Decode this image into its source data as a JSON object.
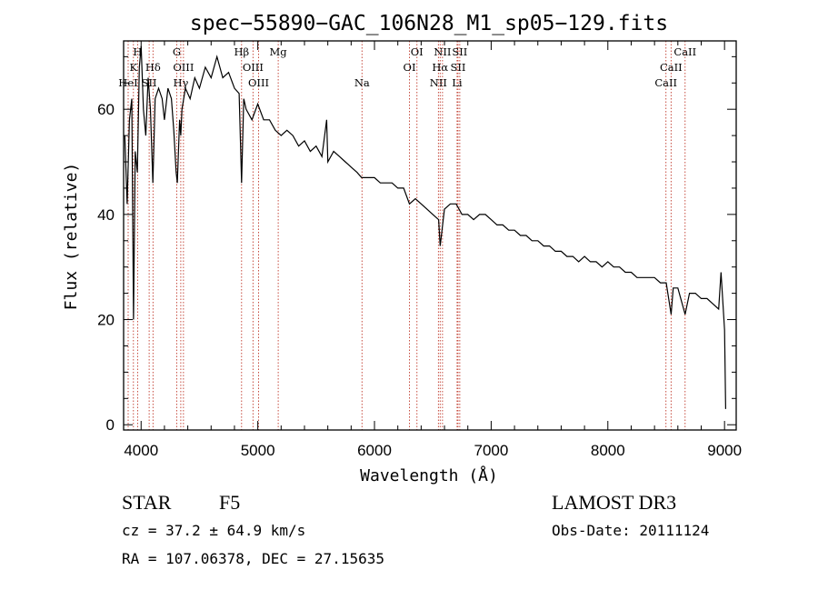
{
  "chart_data": {
    "type": "line",
    "title": "spec−55890−GAC_106N28_M1_sp05−129.fits",
    "xlabel": "Wavelength (Å)",
    "ylabel": "Flux (relative)",
    "xlim": [
      3850,
      9100
    ],
    "ylim": [
      -1,
      73
    ],
    "xticks": [
      4000,
      5000,
      6000,
      7000,
      8000,
      9000
    ],
    "yticks": [
      0,
      20,
      40,
      60
    ],
    "grid": false,
    "series": [
      {
        "name": "spectrum",
        "x": [
          3860,
          3880,
          3900,
          3920,
          3935,
          3950,
          3968,
          3985,
          4000,
          4020,
          4040,
          4060,
          4080,
          4101,
          4120,
          4150,
          4180,
          4200,
          4230,
          4260,
          4280,
          4300,
          4310,
          4330,
          4340,
          4350,
          4380,
          4420,
          4460,
          4500,
          4550,
          4600,
          4650,
          4700,
          4750,
          4800,
          4840,
          4861,
          4880,
          4900,
          4950,
          5000,
          5050,
          5100,
          5150,
          5200,
          5250,
          5300,
          5350,
          5400,
          5450,
          5500,
          5550,
          5590,
          5600,
          5650,
          5700,
          5750,
          5800,
          5850,
          5890,
          5950,
          6000,
          6050,
          6100,
          6150,
          6200,
          6250,
          6300,
          6350,
          6400,
          6450,
          6500,
          6550,
          6563,
          6600,
          6650,
          6700,
          6750,
          6800,
          6850,
          6900,
          6950,
          7000,
          7050,
          7100,
          7150,
          7200,
          7250,
          7300,
          7350,
          7400,
          7450,
          7500,
          7550,
          7600,
          7650,
          7700,
          7750,
          7800,
          7850,
          7900,
          7950,
          8000,
          8050,
          8100,
          8150,
          8200,
          8250,
          8300,
          8350,
          8400,
          8450,
          8500,
          8542,
          8560,
          8600,
          8662,
          8700,
          8750,
          8800,
          8850,
          8900,
          8950,
          8970,
          9000,
          9010
        ],
        "values": [
          55,
          42,
          58,
          62,
          20,
          52,
          48,
          68,
          72,
          60,
          55,
          66,
          60,
          46,
          62,
          64,
          62,
          58,
          64,
          62,
          56,
          48,
          46,
          58,
          55,
          60,
          64,
          62,
          66,
          64,
          68,
          66,
          70,
          66,
          67,
          64,
          63,
          46,
          62,
          60,
          58,
          61,
          58,
          58,
          56,
          55,
          56,
          55,
          53,
          54,
          52,
          53,
          51,
          58,
          50,
          52,
          51,
          50,
          49,
          48,
          47,
          47,
          47,
          46,
          46,
          46,
          45,
          45,
          42,
          43,
          42,
          41,
          40,
          39,
          34,
          41,
          42,
          42,
          40,
          40,
          39,
          40,
          40,
          39,
          38,
          38,
          37,
          37,
          36,
          36,
          35,
          35,
          34,
          34,
          33,
          33,
          32,
          32,
          31,
          32,
          31,
          31,
          30,
          31,
          30,
          30,
          29,
          29,
          28,
          28,
          28,
          28,
          27,
          27,
          21,
          26,
          26,
          21,
          25,
          25,
          24,
          24,
          23,
          22,
          29,
          18,
          3
        ]
      }
    ],
    "lines": [
      {
        "label": "H",
        "wavelength": 3970,
        "row": 1
      },
      {
        "label": "K",
        "wavelength": 3934,
        "row": 2
      },
      {
        "label": "Hδ",
        "wavelength": 4102,
        "row": 2
      },
      {
        "label": "HeI",
        "wavelength": 3889,
        "row": 3
      },
      {
        "label": "SII",
        "wavelength": 4069,
        "row": 3
      },
      {
        "label": "G",
        "wavelength": 4305,
        "row": 1
      },
      {
        "label": "OIII",
        "wavelength": 4363,
        "row": 2
      },
      {
        "label": "Hγ",
        "wavelength": 4340,
        "row": 3
      },
      {
        "label": "Hβ",
        "wavelength": 4861,
        "row": 1
      },
      {
        "label": "OIII",
        "wavelength": 4959,
        "row": 2
      },
      {
        "label": "OIII",
        "wavelength": 5007,
        "row": 3
      },
      {
        "label": "Mg",
        "wavelength": 5175,
        "row": 1
      },
      {
        "label": "Na",
        "wavelength": 5893,
        "row": 3
      },
      {
        "label": "OI",
        "wavelength": 6364,
        "row": 1
      },
      {
        "label": "OI",
        "wavelength": 6300,
        "row": 2
      },
      {
        "label": "NII",
        "wavelength": 6583,
        "row": 1
      },
      {
        "label": "Hα",
        "wavelength": 6563,
        "row": 2
      },
      {
        "label": "NII",
        "wavelength": 6548,
        "row": 3
      },
      {
        "label": "SII",
        "wavelength": 6731,
        "row": 1
      },
      {
        "label": "SII",
        "wavelength": 6716,
        "row": 2
      },
      {
        "label": "Li",
        "wavelength": 6708,
        "row": 3
      },
      {
        "label": "CaII",
        "wavelength": 8662,
        "row": 1
      },
      {
        "label": "CaII",
        "wavelength": 8542,
        "row": 2
      },
      {
        "label": "CaII",
        "wavelength": 8498,
        "row": 3
      }
    ]
  },
  "info": {
    "class_label": "STAR",
    "subclass": "F5",
    "survey": "LAMOST DR3",
    "cz": "cz = 37.2 ± 64.9 km/s",
    "obs_date": "Obs-Date: 20111124",
    "coords": "RA = 107.06378, DEC =  27.15635"
  },
  "colors": {
    "axis": "#000000",
    "spectrum": "#000000",
    "line_marker": "#c0392b"
  }
}
